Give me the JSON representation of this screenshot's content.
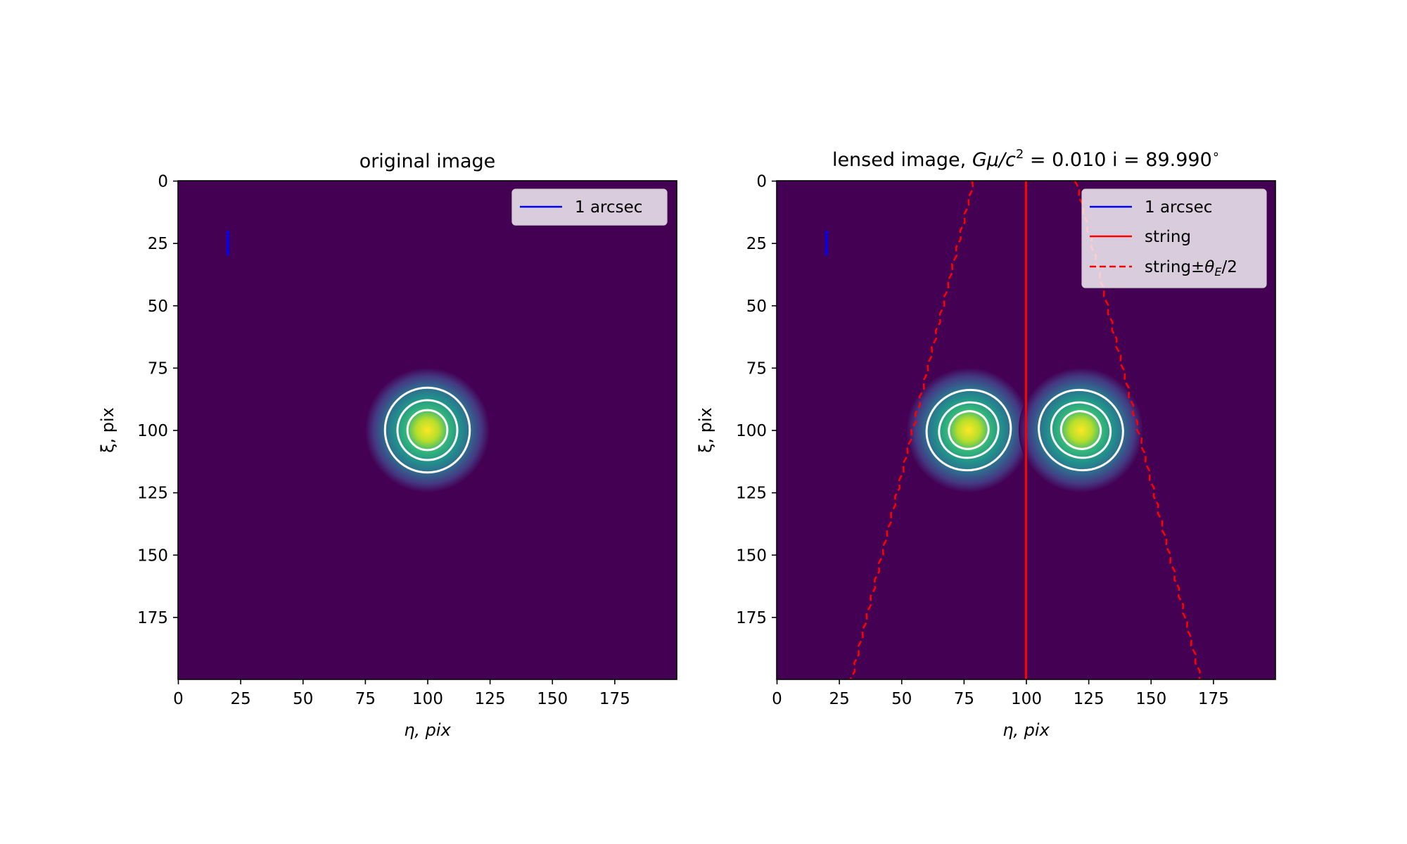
{
  "chart_data": [
    {
      "type": "heatmap",
      "title": "original image",
      "xlabel": "η, pix",
      "ylabel": "ξ, pix",
      "xlim": [
        0,
        200
      ],
      "ylim": [
        200,
        0
      ],
      "xticks": [
        0,
        25,
        50,
        75,
        100,
        125,
        150,
        175
      ],
      "yticks": [
        0,
        25,
        50,
        75,
        100,
        125,
        150,
        175
      ],
      "colormap": "viridis",
      "background_color": "#440154",
      "sources": [
        {
          "x": 100,
          "y": 100,
          "contours": [
            {
              "rx": 17,
              "ry": 17,
              "angle": 0
            },
            {
              "rx": 12,
              "ry": 12,
              "angle": 0
            },
            {
              "rx": 8,
              "ry": 8,
              "angle": 0
            }
          ]
        }
      ],
      "scale_bar": {
        "x": 20,
        "y_start": 20,
        "y_end": 30,
        "color": "#0000ff"
      },
      "legend": {
        "placement": "upper right",
        "entries": [
          {
            "label": "1 arcsec",
            "color": "#0000ff",
            "style": "solid"
          }
        ]
      }
    },
    {
      "type": "heatmap",
      "title_text": "lensed image, ",
      "title_math": "Gμ/c",
      "title_sup": "2",
      "title_value": " = 0.010 i = 89.990",
      "title_deg": "∘",
      "xlabel": "η, pix",
      "ylabel": "ξ, pix",
      "xlim": [
        0,
        200
      ],
      "ylim": [
        200,
        0
      ],
      "xticks": [
        0,
        25,
        50,
        75,
        100,
        125,
        150,
        175
      ],
      "yticks": [
        0,
        25,
        50,
        75,
        100,
        125,
        150,
        175
      ],
      "colormap": "viridis",
      "background_color": "#440154",
      "sources": [
        {
          "x": 77,
          "y": 100,
          "contours": [
            {
              "rx": 17,
              "ry": 16,
              "angle": -20
            },
            {
              "rx": 12,
              "ry": 11,
              "angle": -20
            },
            {
              "rx": 8,
              "ry": 7.5,
              "angle": -20
            }
          ]
        },
        {
          "x": 122,
          "y": 100,
          "contours": [
            {
              "rx": 17,
              "ry": 16,
              "angle": 20
            },
            {
              "rx": 12,
              "ry": 11,
              "angle": 20
            },
            {
              "rx": 8,
              "ry": 7.5,
              "angle": 20
            }
          ]
        }
      ],
      "scale_bar": {
        "x": 20,
        "y_start": 20,
        "y_end": 30,
        "color": "#0000ff"
      },
      "string_line": {
        "x": 100,
        "color": "#ff0000"
      },
      "string_edges": [
        {
          "x_top": 79,
          "x_bottom": 30
        },
        {
          "x_top": 120,
          "x_bottom": 170
        }
      ],
      "legend": {
        "placement": "upper right",
        "entries": [
          {
            "label": "1 arcsec",
            "color": "#0000ff",
            "style": "solid"
          },
          {
            "label": "string",
            "color": "#ff0000",
            "style": "solid"
          },
          {
            "label": "string±",
            "label_math": "θ",
            "label_sub": "E",
            "label_tail": "/2",
            "color": "#ff0000",
            "style": "dashed"
          }
        ]
      }
    }
  ]
}
